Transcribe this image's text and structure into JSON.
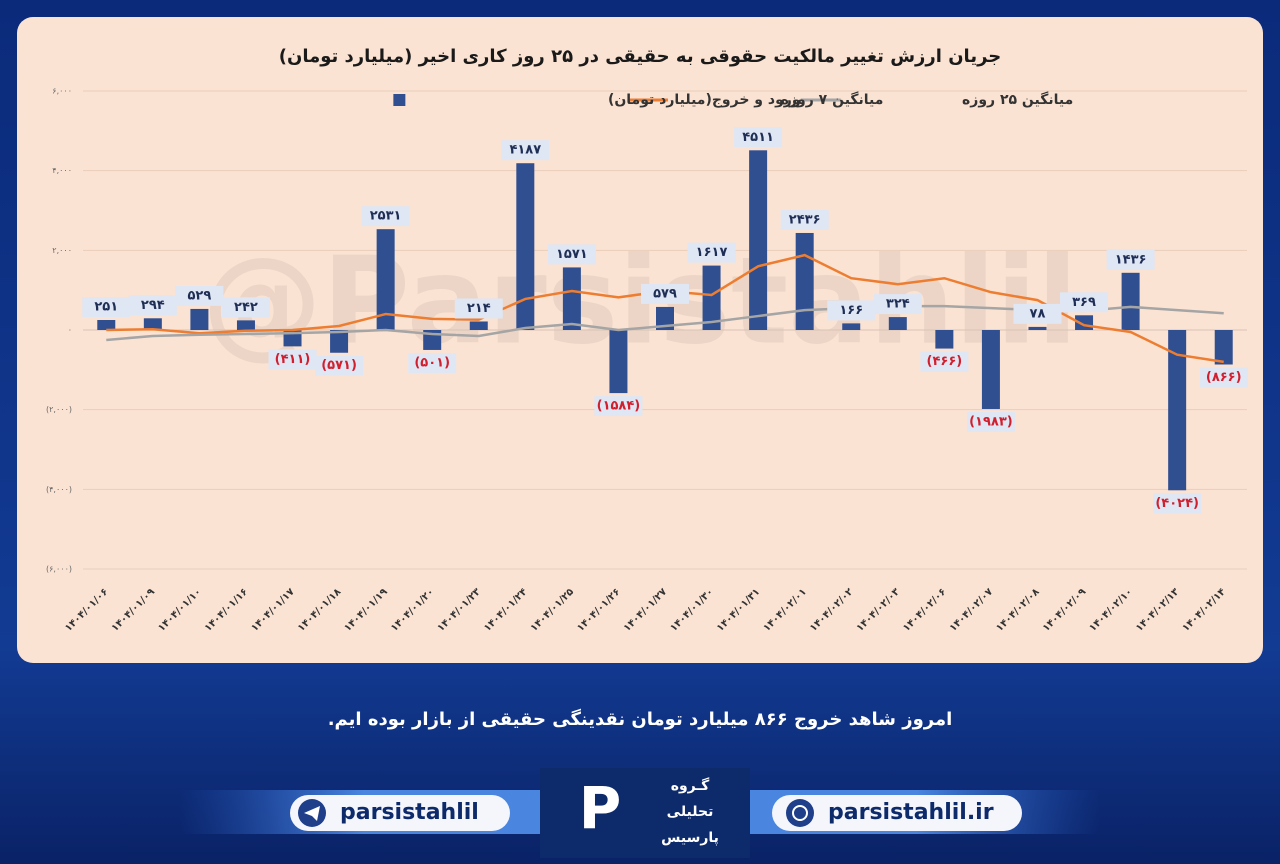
{
  "chart_data": {
    "type": "bar",
    "title": "جریان ارزش تغییر مالکیت حقوقی به حقیقی در ۲۵ روز کاری اخیر (میلیارد تومان)",
    "watermark": "@Parsistahlil",
    "categories": [
      "۱۴۰۴/۰۱/۰۶",
      "۱۴۰۴/۰۱/۰۹",
      "۱۴۰۴/۰۱/۱۰",
      "۱۴۰۴/۰۱/۱۶",
      "۱۴۰۴/۰۱/۱۷",
      "۱۴۰۴/۰۱/۱۸",
      "۱۴۰۴/۰۱/۱۹",
      "۱۴۰۴/۰۱/۲۰",
      "۱۴۰۴/۰۱/۲۳",
      "۱۴۰۴/۰۱/۲۴",
      "۱۴۰۴/۰۱/۲۵",
      "۱۴۰۴/۰۱/۲۶",
      "۱۴۰۴/۰۱/۲۷",
      "۱۴۰۴/۰۱/۳۰",
      "۱۴۰۴/۰۱/۳۱",
      "۱۴۰۴/۰۲/۰۱",
      "۱۴۰۴/۰۲/۰۲",
      "۱۴۰۴/۰۲/۰۳",
      "۱۴۰۴/۰۲/۰۶",
      "۱۴۰۴/۰۲/۰۷",
      "۱۴۰۴/۰۲/۰۸",
      "۱۴۰۴/۰۲/۰۹",
      "۱۴۰۴/۰۲/۱۰",
      "۱۴۰۴/۰۲/۱۳",
      "۱۴۰۴/۰۲/۱۴"
    ],
    "series": [
      {
        "name": "ورود و خروج(میلیارد تومان)",
        "mark": "bar",
        "color": "#2f4f91",
        "values": [
          251,
          294,
          529,
          242,
          -411,
          -571,
          2531,
          -501,
          214,
          4187,
          1571,
          -1584,
          579,
          1617,
          4511,
          2436,
          166,
          324,
          -466,
          -1983,
          78,
          369,
          1436,
          -4024,
          -866
        ],
        "value_labels": [
          "۲۵۱",
          "۲۹۴",
          "۵۲۹",
          "۲۴۲",
          "(۴۱۱)",
          "(۵۷۱)",
          "۲۵۳۱",
          "(۵۰۱)",
          "۲۱۴",
          "۴۱۸۷",
          "۱۵۷۱",
          "(۱۵۸۴)",
          "۵۷۹",
          "۱۶۱۷",
          "۴۵۱۱",
          "۲۴۳۶",
          "۱۶۶",
          "۳۲۴",
          "(۴۶۶)",
          "(۱۹۸۳)",
          "۷۸",
          "۳۶۹",
          "۱۴۳۶",
          "(۴۰۲۴)",
          "(۸۶۶)"
        ]
      },
      {
        "name": "میانگین ۷ روزه",
        "mark": "line",
        "color": "#ed7d31",
        "values": [
          0,
          20,
          -80,
          -20,
          0,
          100,
          400,
          280,
          260,
          780,
          980,
          820,
          980,
          880,
          1600,
          1880,
          1300,
          1150,
          1300,
          950,
          750,
          120,
          -50,
          -620,
          -800
        ]
      },
      {
        "name": "میانگین ۲۵ روزه",
        "mark": "line",
        "color": "#a5a5a5",
        "values": [
          -250,
          -150,
          -120,
          -100,
          -80,
          -50,
          0,
          -100,
          -150,
          50,
          150,
          0,
          100,
          200,
          350,
          500,
          550,
          600,
          600,
          550,
          500,
          480,
          580,
          500,
          420
        ]
      }
    ],
    "ylim": [
      -6000,
      6000
    ],
    "yticks": [
      {
        "value": 6000,
        "label": "۶,۰۰۰"
      },
      {
        "value": 4000,
        "label": "۴,۰۰۰"
      },
      {
        "value": 2000,
        "label": "۲,۰۰۰"
      },
      {
        "value": 0,
        "label": "۰"
      },
      {
        "value": -2000,
        "label": "(۲,۰۰۰)"
      },
      {
        "value": -4000,
        "label": "(۴,۰۰۰)"
      },
      {
        "value": -6000,
        "label": "(۶,۰۰۰)"
      }
    ],
    "grid": true
  },
  "caption": "امروز شاهد خروج ۸۶۶ میلیارد تومان نقدینگی حقیقی از بازار بوده ایم.",
  "footer": {
    "telegram": "parsistahlil",
    "website": "parsistahlil.ir",
    "logo": [
      "گـروه",
      "تحلیلی",
      "پارسیس"
    ]
  }
}
